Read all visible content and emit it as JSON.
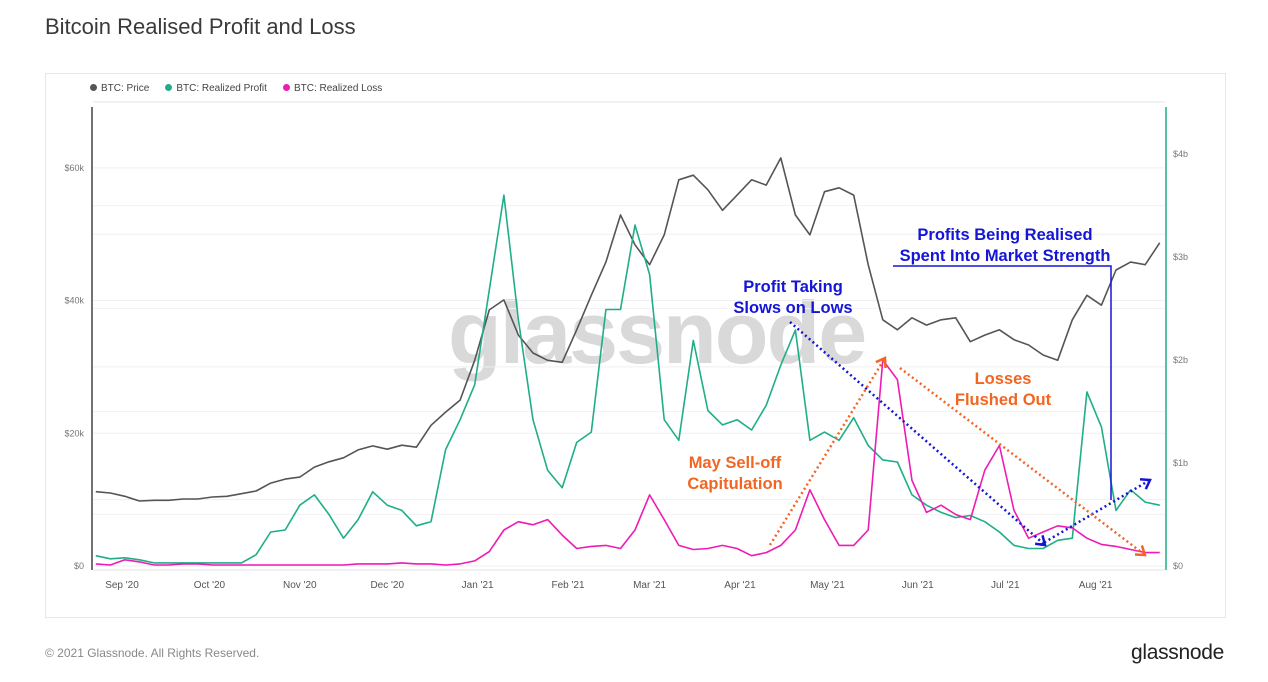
{
  "title": "Bitcoin Realised Profit and Loss",
  "footer": "© 2021 Glassnode. All Rights Reserved.",
  "logo": "glassnode",
  "watermark": "glassnode",
  "colors": {
    "price": "#555555",
    "profit": "#1fae87",
    "loss": "#ee1bb4",
    "annotation_blue": "#1515d6",
    "annotation_orange": "#f26522"
  },
  "annotations": {
    "profit_taking": [
      "Profit Taking",
      "Slows on Lows"
    ],
    "profits_realised": [
      "Profits Being Realised",
      "Spent Into Market Strength"
    ],
    "may_selloff": [
      "May Sell-off",
      "Capitulation"
    ],
    "losses": [
      "Losses",
      "Flushed Out"
    ]
  },
  "chart_data": {
    "type": "line",
    "title": "Bitcoin Realised Profit and Loss",
    "legend_position": "top-left",
    "grid": true,
    "x_ticks": [
      "Sep '20",
      "Oct '20",
      "Nov '20",
      "Dec '20",
      "Jan '21",
      "Feb '21",
      "Mar '21",
      "Apr '21",
      "May '21",
      "Jun '21",
      "Jul '21",
      "Aug '21"
    ],
    "y_left_ticks": [
      "$0",
      "$20k",
      "$40k",
      "$60k"
    ],
    "y_right_ticks": [
      "$0",
      "$1b",
      "$2b",
      "$3b",
      "$4b"
    ],
    "y_left_range": [
      0,
      75000
    ],
    "y_right_range": [
      0,
      4.5
    ],
    "dates": [
      "2020-08-23",
      "2020-08-28",
      "2020-09-02",
      "2020-09-07",
      "2020-09-12",
      "2020-09-17",
      "2020-09-22",
      "2020-09-27",
      "2020-10-02",
      "2020-10-07",
      "2020-10-12",
      "2020-10-17",
      "2020-10-22",
      "2020-10-27",
      "2020-11-01",
      "2020-11-06",
      "2020-11-11",
      "2020-11-16",
      "2020-11-21",
      "2020-11-26",
      "2020-12-01",
      "2020-12-06",
      "2020-12-11",
      "2020-12-16",
      "2020-12-21",
      "2020-12-26",
      "2020-12-31",
      "2021-01-05",
      "2021-01-10",
      "2021-01-15",
      "2021-01-20",
      "2021-01-25",
      "2021-01-30",
      "2021-02-04",
      "2021-02-09",
      "2021-02-14",
      "2021-02-19",
      "2021-02-24",
      "2021-03-01",
      "2021-03-06",
      "2021-03-11",
      "2021-03-16",
      "2021-03-21",
      "2021-03-26",
      "2021-03-31",
      "2021-04-05",
      "2021-04-10",
      "2021-04-15",
      "2021-04-20",
      "2021-04-25",
      "2021-04-30",
      "2021-05-05",
      "2021-05-10",
      "2021-05-15",
      "2021-05-20",
      "2021-05-25",
      "2021-05-30",
      "2021-06-04",
      "2021-06-09",
      "2021-06-14",
      "2021-06-19",
      "2021-06-24",
      "2021-06-29",
      "2021-07-04",
      "2021-07-09",
      "2021-07-14",
      "2021-07-19",
      "2021-07-24",
      "2021-07-29",
      "2021-08-03",
      "2021-08-08",
      "2021-08-13",
      "2021-08-18",
      "2021-08-23"
    ],
    "series": [
      {
        "name": "BTC: Price",
        "axis": "left",
        "unit": "USD",
        "values": [
          11200,
          11000,
          10500,
          9800,
          9900,
          9900,
          10100,
          10100,
          10400,
          10500,
          10900,
          11300,
          12500,
          13100,
          13400,
          14900,
          15700,
          16300,
          17500,
          18100,
          17600,
          18200,
          17900,
          21200,
          23200,
          25000,
          31000,
          38600,
          40100,
          34800,
          32100,
          31000,
          30700,
          35600,
          40800,
          45800,
          52900,
          48400,
          45400,
          49900,
          58200,
          58900,
          56700,
          53600,
          55900,
          58200,
          57400,
          61500,
          52900,
          49900,
          56400,
          57000,
          55900,
          45400,
          37100,
          35600,
          37400,
          36300,
          37100,
          37400,
          33800,
          34800,
          35600,
          34100,
          33300,
          31800,
          31000,
          37100,
          40800,
          39300,
          44600,
          45800,
          45400,
          48700
        ]
      },
      {
        "name": "BTC: Realized Profit",
        "axis": "right",
        "unit": "USD billions",
        "values": [
          0.1,
          0.07,
          0.08,
          0.06,
          0.03,
          0.03,
          0.03,
          0.03,
          0.03,
          0.03,
          0.03,
          0.11,
          0.33,
          0.35,
          0.59,
          0.69,
          0.5,
          0.27,
          0.45,
          0.72,
          0.59,
          0.54,
          0.39,
          0.43,
          1.13,
          1.42,
          1.76,
          2.68,
          3.6,
          2.39,
          1.42,
          0.93,
          0.76,
          1.2,
          1.3,
          2.49,
          2.49,
          3.31,
          2.83,
          1.42,
          1.22,
          2.19,
          1.51,
          1.37,
          1.42,
          1.32,
          1.56,
          1.95,
          2.29,
          1.22,
          1.3,
          1.22,
          1.44,
          1.17,
          1.03,
          1.01,
          0.69,
          0.59,
          0.52,
          0.47,
          0.49,
          0.43,
          0.33,
          0.2,
          0.17,
          0.17,
          0.25,
          0.27,
          1.69,
          1.35,
          0.54,
          0.74,
          0.62,
          0.59
        ]
      },
      {
        "name": "BTC: Realized Loss",
        "axis": "right",
        "unit": "USD billions",
        "values": [
          0.02,
          0.01,
          0.06,
          0.04,
          0.01,
          0.01,
          0.02,
          0.02,
          0.01,
          0.01,
          0.01,
          0.01,
          0.01,
          0.01,
          0.01,
          0.01,
          0.01,
          0.01,
          0.02,
          0.02,
          0.02,
          0.03,
          0.02,
          0.02,
          0.01,
          0.02,
          0.05,
          0.14,
          0.35,
          0.43,
          0.4,
          0.45,
          0.3,
          0.17,
          0.19,
          0.2,
          0.17,
          0.35,
          0.69,
          0.45,
          0.2,
          0.16,
          0.17,
          0.2,
          0.17,
          0.1,
          0.13,
          0.2,
          0.35,
          0.74,
          0.45,
          0.2,
          0.2,
          0.35,
          2.0,
          1.81,
          0.83,
          0.52,
          0.59,
          0.5,
          0.45,
          0.93,
          1.17,
          0.54,
          0.27,
          0.33,
          0.39,
          0.37,
          0.27,
          0.21,
          0.19,
          0.16,
          0.13,
          0.13
        ]
      }
    ]
  }
}
